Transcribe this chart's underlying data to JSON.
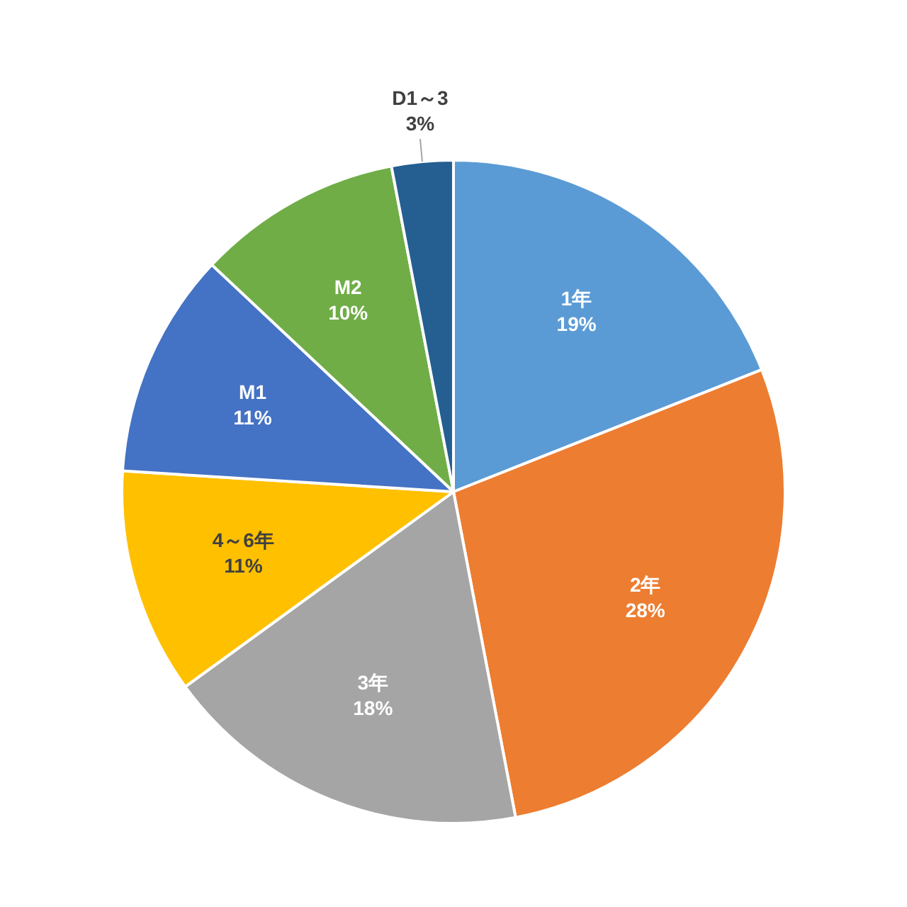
{
  "chart_data": {
    "type": "pie",
    "categories": [
      "1年",
      "2年",
      "3年",
      "4～6年",
      "M1",
      "M2",
      "D1～3"
    ],
    "values": [
      19,
      28,
      18,
      11,
      11,
      10,
      3
    ],
    "colors": [
      "#5b9bd5",
      "#ed7d31",
      "#a5a5a5",
      "#ffc000",
      "#4472c4",
      "#70ad47",
      "#255e91"
    ],
    "value_labels": [
      "19%",
      "28%",
      "18%",
      "11%",
      "11%",
      "10%",
      "3%"
    ]
  }
}
